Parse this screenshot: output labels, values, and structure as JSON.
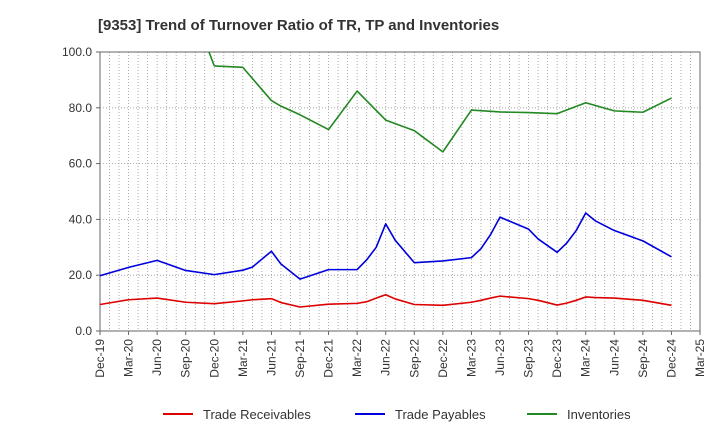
{
  "chart_data": {
    "type": "line",
    "title": "[9353]  Trend of Turnover Ratio of TR, TP and Inventories",
    "xlabel": "",
    "ylabel": "",
    "ylim": [
      0,
      100
    ],
    "y_ticks": [
      "0.0",
      "20.0",
      "40.0",
      "60.0",
      "80.0",
      "100.0"
    ],
    "x_tick_labels": [
      "Dec-19",
      "Mar-20",
      "Jun-20",
      "Sep-20",
      "Dec-20",
      "Mar-21",
      "Jun-21",
      "Sep-21",
      "Dec-21",
      "Mar-22",
      "Jun-22",
      "Sep-22",
      "Dec-22",
      "Mar-23",
      "Jun-23",
      "Sep-23",
      "Dec-23",
      "Mar-24",
      "Jun-24",
      "Sep-24",
      "Dec-24",
      "Mar-25"
    ],
    "x": [
      "Dec-19",
      "Mar-20",
      "Jun-20",
      "Sep-20",
      "Dec-20",
      "Mar-21",
      "Apr-21",
      "Jun-21",
      "Jul-21",
      "Sep-21",
      "Dec-21",
      "Mar-22",
      "Apr-22",
      "May-22",
      "Jun-22",
      "Jul-22",
      "Sep-22",
      "Dec-22",
      "Mar-23",
      "Apr-23",
      "May-23",
      "Jun-23",
      "Sep-23",
      "Oct-23",
      "Dec-23",
      "Jan-24",
      "Feb-24",
      "Mar-24",
      "Apr-24",
      "Jun-24",
      "Sep-24",
      "Dec-24"
    ],
    "grid": true,
    "legend_position": "bottom",
    "series": [
      {
        "name": "Trade Receivables",
        "color": "#dd0000",
        "values": [
          9.5,
          11.2,
          11.8,
          10.3,
          9.8,
          10.8,
          11.2,
          11.6,
          10.2,
          8.6,
          9.6,
          9.9,
          10.5,
          11.8,
          13.0,
          11.5,
          9.5,
          9.2,
          10.3,
          11.0,
          11.8,
          12.5,
          11.6,
          11.0,
          9.3,
          10.0,
          11.0,
          12.2,
          12.0,
          11.8,
          11.0,
          9.2
        ]
      },
      {
        "name": "Trade Payables",
        "color": "#0000dd",
        "values": [
          19.8,
          22.8,
          25.3,
          21.7,
          20.2,
          21.8,
          22.9,
          28.6,
          24.0,
          18.6,
          22.0,
          22.0,
          25.5,
          30.0,
          38.4,
          32.5,
          24.5,
          25.1,
          26.3,
          29.5,
          34.5,
          40.8,
          36.5,
          33.0,
          28.2,
          31.5,
          36.0,
          42.3,
          39.5,
          36.0,
          32.3,
          26.6
        ]
      },
      {
        "name": "Inventories",
        "color": "#228822",
        "values": [
          null,
          null,
          null,
          null,
          95.0,
          94.5,
          90.5,
          82.6,
          80.6,
          77.5,
          72.2,
          86.0,
          null,
          null,
          75.6,
          null,
          71.8,
          64.2,
          79.2,
          null,
          null,
          78.5,
          78.3,
          null,
          77.9,
          null,
          null,
          81.8,
          null,
          78.9,
          78.4,
          83.5
        ]
      }
    ]
  }
}
